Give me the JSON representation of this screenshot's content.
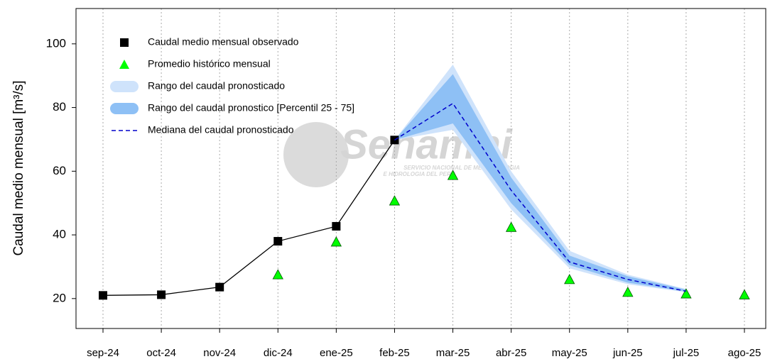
{
  "chart_data": {
    "type": "line",
    "y_label": "Caudal medio mensual  [m³/s]",
    "watermark": {
      "title": "Senamhi",
      "subtitle_1": "SERVICIO NACIONAL DE METEOROLOGIA",
      "subtitle_2": "E HIDROLOGIA DEL PERU"
    },
    "categories": [
      "sep-24",
      "oct-24",
      "nov-24",
      "dic-24",
      "ene-25",
      "feb-25",
      "mar-25",
      "abr-25",
      "may-25",
      "jun-25",
      "jul-25",
      "ago-25"
    ],
    "ylim": [
      10.6,
      111.1
    ],
    "yticks": [
      20,
      40,
      60,
      80,
      100
    ],
    "grid": true,
    "legend": "upper left",
    "series": [
      {
        "name": "Caudal medio mensual observado",
        "color": "#000000",
        "marker": "square",
        "line": "solid",
        "values": [
          21,
          21.2,
          23.6,
          38,
          42.7,
          69.8,
          null,
          null,
          null,
          null,
          null,
          null
        ]
      },
      {
        "name": "Promedio histórico mensual",
        "color": "#00ff00",
        "marker": "triangle",
        "line": "none",
        "values": [
          null,
          null,
          null,
          27.5,
          37.8,
          50.7,
          58.7,
          42.4,
          26,
          22,
          21.5,
          21.2
        ]
      },
      {
        "name": "Mediana del caudal pronosticado",
        "color": "#0000cc",
        "marker": "none",
        "line": "dashed",
        "values": [
          null,
          null,
          null,
          null,
          null,
          69.8,
          81.3,
          54,
          31.5,
          26,
          22.3,
          null
        ]
      }
    ],
    "bands": [
      {
        "name": "Rango del caudal pronosticado",
        "color": "#cfe3fb",
        "lower": [
          null,
          null,
          null,
          null,
          null,
          69.8,
          73,
          48,
          29.5,
          24.5,
          22,
          null
        ],
        "upper": [
          null,
          null,
          null,
          null,
          null,
          69.8,
          93.5,
          60,
          35,
          27.5,
          23,
          null
        ]
      },
      {
        "name": "Rango del caudal pronostico [Percentil 25 - 75]",
        "color": "#8ec0f5",
        "lower": [
          null,
          null,
          null,
          null,
          null,
          69.8,
          75,
          50,
          30.5,
          25,
          22.2,
          null
        ],
        "upper": [
          null,
          null,
          null,
          null,
          null,
          69.8,
          90.5,
          58,
          33.5,
          27,
          22.8,
          null
        ]
      }
    ]
  }
}
